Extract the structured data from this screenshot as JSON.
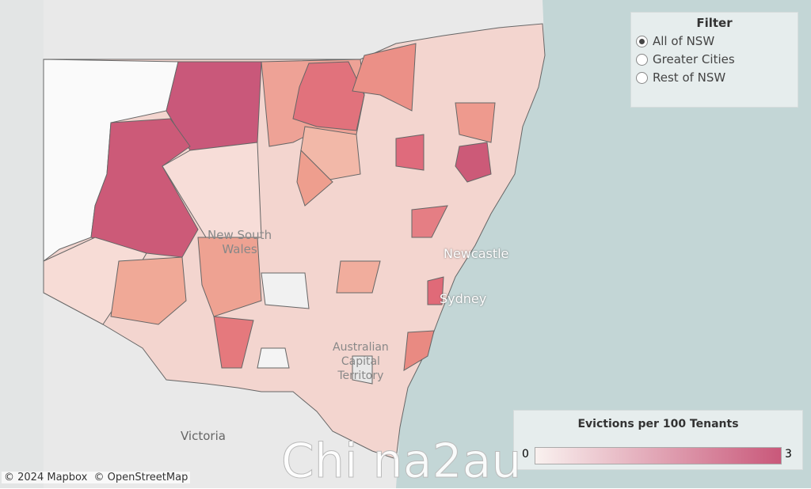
{
  "filter": {
    "title": "Filter",
    "options": [
      "All of NSW",
      "Greater Cities",
      "Rest of NSW"
    ],
    "selected": 0
  },
  "map_labels": {
    "state": "New South\nWales",
    "newcastle": "Newcastle",
    "sydney": "Sydney",
    "act": "Australian\nCapital\nTerritory",
    "victoria": "Victoria"
  },
  "legend": {
    "title": "Evictions per 100 Tenants",
    "min": 0,
    "max": 3,
    "color_low": "#f9f1ef",
    "color_high": "#c9587a"
  },
  "attribution": "© 2024 Mapbox  © OpenStreetMap",
  "watermark": "Chi na2au"
}
